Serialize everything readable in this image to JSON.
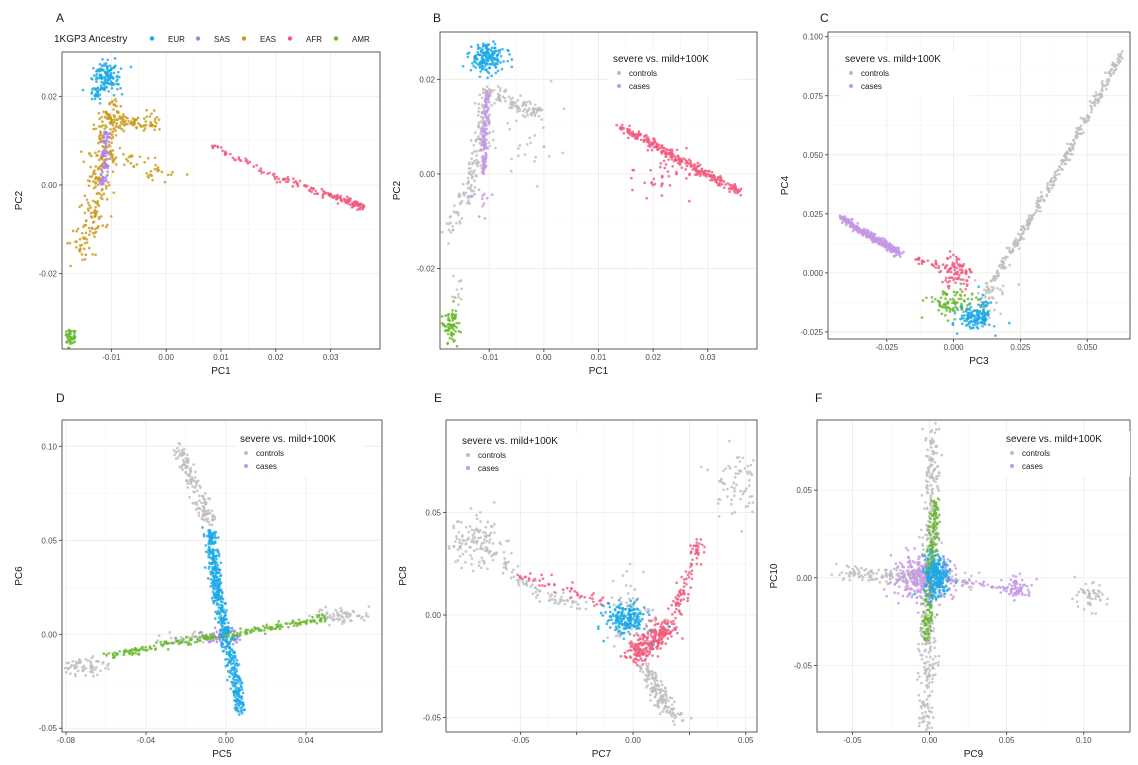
{
  "colors": {
    "EUR": "#1aa9e6",
    "SAS": "#b07de8",
    "EAS": "#cc9a1a",
    "AFR": "#f05a7e",
    "AMR": "#66b82a",
    "controls": "#bdbdbd",
    "cases": "#c597e6"
  },
  "legend_top": {
    "title": "1KGP3 Ancestry",
    "entries": [
      {
        "label": "EUR",
        "color_key": "EUR"
      },
      {
        "label": "SAS",
        "color_key": "SAS"
      },
      {
        "label": "EAS",
        "color_key": "EAS"
      },
      {
        "label": "AFR",
        "color_key": "AFR"
      },
      {
        "label": "AMR",
        "color_key": "AMR"
      }
    ]
  },
  "chart_data": [
    {
      "type": "scatter",
      "panel": "A",
      "xlabel": "PC1",
      "ylabel": "PC2",
      "xlim": [
        -0.019,
        0.039
      ],
      "ylim": [
        -0.037,
        0.03
      ],
      "xticks": [
        -0.01,
        0.0,
        0.01,
        0.02,
        0.03
      ],
      "xtick_labels": [
        "-0.01",
        "0.00",
        "0.01",
        "0.02",
        "0.03"
      ],
      "yticks": [
        -0.02,
        0.0,
        0.02
      ],
      "ytick_labels": [
        "-0.02",
        "0.00",
        "0.02"
      ],
      "clusters": [
        {
          "group": "EAS",
          "shape": "poly",
          "pts": [
            [
              -0.016,
              -0.015
            ],
            [
              -0.014,
              -0.01
            ],
            [
              -0.012,
              0.0
            ],
            [
              -0.011,
              0.012
            ],
            [
              -0.009,
              0.018
            ]
          ],
          "spread": 0.0025,
          "n": 260
        },
        {
          "group": "EAS",
          "shape": "poly",
          "pts": [
            [
              -0.011,
              0.015
            ],
            [
              -0.006,
              0.014
            ],
            [
              -0.002,
              0.014
            ]
          ],
          "spread": 0.0017,
          "n": 90
        },
        {
          "group": "EAS",
          "shape": "poly",
          "pts": [
            [
              -0.012,
              0.009
            ],
            [
              -0.004,
              0.004
            ],
            [
              0.002,
              0.002
            ]
          ],
          "spread": 0.0022,
          "n": 45
        },
        {
          "group": "SAS",
          "shape": "poly",
          "pts": [
            [
              -0.0115,
              0.0
            ],
            [
              -0.011,
              0.012
            ]
          ],
          "spread": 0.0007,
          "n": 70
        },
        {
          "group": "EUR",
          "shape": "blob",
          "cx": -0.011,
          "cy": 0.0245,
          "sx": 0.0013,
          "sy": 0.0017,
          "n": 130
        },
        {
          "group": "EUR",
          "shape": "blob",
          "cx": -0.0125,
          "cy": 0.0205,
          "sx": 0.0006,
          "sy": 0.0009,
          "n": 25
        },
        {
          "group": "AFR",
          "shape": "poly",
          "pts": [
            [
              0.008,
              0.009
            ],
            [
              0.02,
              0.002
            ],
            [
              0.036,
              -0.005
            ]
          ],
          "spread": 0.0008,
          "n": 110
        },
        {
          "group": "AFR",
          "shape": "poly",
          "pts": [
            [
              0.028,
              -0.0015
            ],
            [
              0.036,
              -0.005
            ]
          ],
          "spread": 0.0006,
          "n": 60
        },
        {
          "group": "AMR",
          "shape": "blob",
          "cx": -0.0175,
          "cy": -0.034,
          "sx": 0.0005,
          "sy": 0.0012,
          "n": 45
        }
      ]
    },
    {
      "type": "scatter",
      "panel": "B",
      "xlabel": "PC1",
      "ylabel": "PC2",
      "xlim": [
        -0.019,
        0.039
      ],
      "ylim": [
        -0.037,
        0.03
      ],
      "xticks": [
        -0.01,
        0.0,
        0.01,
        0.02,
        0.03
      ],
      "xtick_labels": [
        "-0.01",
        "0.00",
        "0.01",
        "0.02",
        "0.03"
      ],
      "yticks": [
        -0.02,
        0.0,
        0.02
      ],
      "ytick_labels": [
        "-0.02",
        "0.00",
        "0.02"
      ],
      "legend": {
        "title": "severe vs. mild+100K",
        "entries": [
          "controls",
          "cases"
        ]
      },
      "clusters": [
        {
          "group": "controls",
          "shape": "poly",
          "pts": [
            [
              -0.017,
              -0.012
            ],
            [
              -0.014,
              -0.004
            ],
            [
              -0.012,
              0.004
            ],
            [
              -0.011,
              0.016
            ]
          ],
          "spread": 0.0015,
          "n": 150
        },
        {
          "group": "controls",
          "shape": "poly",
          "pts": [
            [
              -0.011,
              0.018
            ],
            [
              -0.006,
              0.015
            ],
            [
              -0.001,
              0.013
            ]
          ],
          "spread": 0.0015,
          "n": 110
        },
        {
          "group": "controls",
          "shape": "blob",
          "cx": -0.004,
          "cy": 0.006,
          "sx": 0.004,
          "sy": 0.004,
          "n": 35
        },
        {
          "group": "controls",
          "shape": "blob",
          "cx": -0.016,
          "cy": -0.025,
          "sx": 0.0006,
          "sy": 0.002,
          "n": 12
        },
        {
          "group": "cases",
          "shape": "poly",
          "pts": [
            [
              -0.011,
              0.0
            ],
            [
              -0.0105,
              0.017
            ]
          ],
          "spread": 0.0007,
          "n": 130
        },
        {
          "group": "cases",
          "shape": "blob",
          "cx": -0.011,
          "cy": -0.005,
          "sx": 0.0012,
          "sy": 0.002,
          "n": 12
        },
        {
          "group": "EUR",
          "shape": "blob",
          "cx": -0.0105,
          "cy": 0.0245,
          "sx": 0.0016,
          "sy": 0.0015,
          "n": 170
        },
        {
          "group": "AFR",
          "shape": "poly",
          "pts": [
            [
              0.014,
              0.01
            ],
            [
              0.025,
              0.003
            ],
            [
              0.036,
              -0.004
            ]
          ],
          "spread": 0.001,
          "n": 280
        },
        {
          "group": "AFR",
          "shape": "blob",
          "cx": 0.022,
          "cy": 0.0,
          "sx": 0.004,
          "sy": 0.003,
          "n": 40
        },
        {
          "group": "AMR",
          "shape": "blob",
          "cx": -0.017,
          "cy": -0.032,
          "sx": 0.0006,
          "sy": 0.0022,
          "n": 70
        }
      ]
    },
    {
      "type": "scatter",
      "panel": "C",
      "xlabel": "PC3",
      "ylabel": "PC4",
      "xlim": [
        -0.047,
        0.066
      ],
      "ylim": [
        -0.028,
        0.102
      ],
      "xticks": [
        -0.025,
        0.0,
        0.025,
        0.05
      ],
      "xtick_labels": [
        "-0.025",
        "0.000",
        "0.025",
        "0.050"
      ],
      "yticks": [
        -0.025,
        0.0,
        0.025,
        0.05,
        0.075,
        0.1
      ],
      "ytick_labels": [
        "-0.025",
        "0.000",
        "0.025",
        "0.050",
        "0.075",
        "0.100"
      ],
      "legend": {
        "title": "severe vs. mild+100K",
        "entries": [
          "controls",
          "cases"
        ]
      },
      "clusters": [
        {
          "group": "controls",
          "shape": "poly",
          "pts": [
            [
              0.012,
              -0.008
            ],
            [
              0.03,
              0.025
            ],
            [
              0.045,
              0.055
            ],
            [
              0.063,
              0.093
            ]
          ],
          "spread": 0.0015,
          "n": 330
        },
        {
          "group": "controls",
          "shape": "blob",
          "cx": 0.013,
          "cy": -0.01,
          "sx": 0.003,
          "sy": 0.004,
          "n": 40
        },
        {
          "group": "cases",
          "shape": "poly",
          "pts": [
            [
              -0.042,
              0.023
            ],
            [
              -0.03,
              0.015
            ],
            [
              -0.02,
              0.008
            ]
          ],
          "spread": 0.0016,
          "n": 320
        },
        {
          "group": "AFR",
          "shape": "blob",
          "cx": 0.001,
          "cy": 0.0,
          "sx": 0.003,
          "sy": 0.003,
          "n": 90
        },
        {
          "group": "AFR",
          "shape": "poly",
          "pts": [
            [
              -0.015,
              0.006
            ],
            [
              -0.003,
              0.002
            ]
          ],
          "spread": 0.0015,
          "n": 25
        },
        {
          "group": "AMR",
          "shape": "blob",
          "cx": -0.001,
          "cy": -0.013,
          "sx": 0.0045,
          "sy": 0.003,
          "n": 90
        },
        {
          "group": "EUR",
          "shape": "blob",
          "cx": 0.008,
          "cy": -0.019,
          "sx": 0.003,
          "sy": 0.0025,
          "n": 120
        },
        {
          "group": "EUR",
          "shape": "blob",
          "cx": 0.011,
          "cy": -0.016,
          "sx": 0.0015,
          "sy": 0.005,
          "n": 30
        }
      ]
    },
    {
      "type": "scatter",
      "panel": "D",
      "xlabel": "PC5",
      "ylabel": "PC6",
      "xlim": [
        -0.082,
        0.078
      ],
      "ylim": [
        -0.052,
        0.114
      ],
      "xticks": [
        -0.08,
        -0.04,
        0.0,
        0.04
      ],
      "xtick_labels": [
        "-0.08",
        "-0.04",
        "0.00",
        "0.04"
      ],
      "yticks": [
        -0.05,
        0.0,
        0.05,
        0.1
      ],
      "ytick_labels": [
        "-0.05",
        "0.00",
        "0.05",
        "0.10"
      ],
      "legend": {
        "title": "severe vs. mild+100K",
        "entries": [
          "controls",
          "cases"
        ]
      },
      "clusters": [
        {
          "group": "controls",
          "shape": "poly",
          "pts": [
            [
              -0.024,
              0.1
            ],
            [
              -0.016,
              0.08
            ],
            [
              -0.009,
              0.06
            ]
          ],
          "spread": 0.0035,
          "n": 150
        },
        {
          "group": "controls",
          "shape": "blob",
          "cx": -0.072,
          "cy": -0.017,
          "sx": 0.006,
          "sy": 0.0025,
          "n": 70
        },
        {
          "group": "controls",
          "shape": "blob",
          "cx": 0.058,
          "cy": 0.01,
          "sx": 0.007,
          "sy": 0.002,
          "n": 70
        },
        {
          "group": "controls",
          "shape": "blob",
          "cx": -0.02,
          "cy": -0.002,
          "sx": 0.006,
          "sy": 0.002,
          "n": 30
        },
        {
          "group": "AMR",
          "shape": "poly",
          "pts": [
            [
              -0.06,
              -0.012
            ],
            [
              -0.03,
              -0.005
            ],
            [
              0.0,
              0.0
            ],
            [
              0.03,
              0.005
            ],
            [
              0.05,
              0.009
            ]
          ],
          "spread": 0.0018,
          "n": 230
        },
        {
          "group": "EUR",
          "shape": "poly",
          "pts": [
            [
              -0.008,
              0.055
            ],
            [
              -0.004,
              0.02
            ],
            [
              0.0,
              0.0
            ],
            [
              0.004,
              -0.02
            ],
            [
              0.007,
              -0.04
            ]
          ],
          "spread": 0.0028,
          "n": 520
        },
        {
          "group": "SAS",
          "shape": "blob",
          "cx": -0.002,
          "cy": -0.001,
          "sx": 0.0045,
          "sy": 0.0025,
          "n": 60
        }
      ]
    },
    {
      "type": "scatter",
      "panel": "E",
      "xlabel": "PC7",
      "ylabel": "PC8",
      "xlim": [
        -0.083,
        0.055
      ],
      "ylim": [
        -0.057,
        0.095
      ],
      "xticks": [
        -0.05,
        -0.025,
        0.0,
        0.025,
        0.05
      ],
      "xtick_labels": [
        "-0.05",
        "",
        "0.00",
        "",
        "0.05"
      ],
      "yticks": [
        -0.05,
        0.0,
        0.05
      ],
      "ytick_labels": [
        "-0.05",
        "0.00",
        "0.05"
      ],
      "legend": {
        "title": "severe vs. mild+100K",
        "entries": [
          "controls",
          "cases"
        ]
      },
      "clusters": [
        {
          "group": "controls",
          "shape": "blob",
          "cx": -0.07,
          "cy": 0.035,
          "sx": 0.007,
          "sy": 0.006,
          "n": 130
        },
        {
          "group": "controls",
          "shape": "poly",
          "pts": [
            [
              -0.062,
              0.028
            ],
            [
              -0.04,
              0.01
            ],
            [
              -0.02,
              0.002
            ]
          ],
          "spread": 0.0035,
          "n": 80
        },
        {
          "group": "controls",
          "shape": "poly",
          "pts": [
            [
              0.005,
              -0.025
            ],
            [
              0.012,
              -0.04
            ],
            [
              0.02,
              -0.05
            ]
          ],
          "spread": 0.004,
          "n": 150
        },
        {
          "group": "controls",
          "shape": "blob",
          "cx": 0.045,
          "cy": 0.065,
          "sx": 0.005,
          "sy": 0.008,
          "n": 70
        },
        {
          "group": "controls",
          "shape": "blob",
          "cx": 0.0,
          "cy": 0.0,
          "sx": 0.006,
          "sy": 0.012,
          "n": 60
        },
        {
          "group": "AFR",
          "shape": "poly",
          "pts": [
            [
              0.0,
              -0.02
            ],
            [
              0.008,
              -0.012
            ],
            [
              0.016,
              -0.005
            ]
          ],
          "spread": 0.005,
          "n": 260
        },
        {
          "group": "AFR",
          "shape": "poly",
          "pts": [
            [
              0.018,
              0.0
            ],
            [
              0.025,
              0.02
            ],
            [
              0.03,
              0.035
            ]
          ],
          "spread": 0.003,
          "n": 90
        },
        {
          "group": "AFR",
          "shape": "poly",
          "pts": [
            [
              -0.052,
              0.02
            ],
            [
              -0.03,
              0.012
            ],
            [
              -0.012,
              0.005
            ]
          ],
          "spread": 0.003,
          "n": 50
        },
        {
          "group": "EUR",
          "shape": "blob",
          "cx": -0.003,
          "cy": -0.002,
          "sx": 0.0045,
          "sy": 0.004,
          "n": 190
        }
      ]
    },
    {
      "type": "scatter",
      "panel": "F",
      "xlabel": "PC9",
      "ylabel": "PC10",
      "xlim": [
        -0.073,
        0.13
      ],
      "ylim": [
        -0.088,
        0.09
      ],
      "xticks": [
        -0.05,
        0.0,
        0.05,
        0.1
      ],
      "xtick_labels": [
        "-0.05",
        "0.00",
        "0.05",
        "0.10"
      ],
      "yticks": [
        -0.05,
        0.0,
        0.05
      ],
      "ytick_labels": [
        "-0.05",
        "0.00",
        "0.05"
      ],
      "legend": {
        "title": "severe vs. mild+100K",
        "entries": [
          "controls",
          "cases"
        ]
      },
      "clusters": [
        {
          "group": "controls",
          "shape": "poly",
          "pts": [
            [
              0.002,
              0.085
            ],
            [
              0.001,
              0.04
            ],
            [
              0.0,
              0.0
            ],
            [
              -0.001,
              -0.04
            ],
            [
              -0.002,
              -0.085
            ]
          ],
          "spread": 0.0045,
          "n": 420
        },
        {
          "group": "controls",
          "shape": "poly",
          "pts": [
            [
              -0.06,
              0.003
            ],
            [
              -0.03,
              0.001
            ],
            [
              0.0,
              0.0
            ],
            [
              0.03,
              -0.002
            ]
          ],
          "spread": 0.004,
          "n": 160
        },
        {
          "group": "controls",
          "shape": "blob",
          "cx": 0.103,
          "cy": -0.011,
          "sx": 0.006,
          "sy": 0.004,
          "n": 50
        },
        {
          "group": "AMR",
          "shape": "poly",
          "pts": [
            [
              0.004,
              0.045
            ],
            [
              0.002,
              0.02
            ],
            [
              0.0,
              0.0
            ],
            [
              -0.001,
              -0.02
            ],
            [
              -0.002,
              -0.035
            ]
          ],
          "spread": 0.0025,
          "n": 200
        },
        {
          "group": "cases",
          "shape": "blob",
          "cx": -0.004,
          "cy": 0.0,
          "sx": 0.01,
          "sy": 0.006,
          "n": 320
        },
        {
          "group": "cases",
          "shape": "blob",
          "cx": 0.057,
          "cy": -0.006,
          "sx": 0.005,
          "sy": 0.003,
          "n": 70
        },
        {
          "group": "cases",
          "shape": "poly",
          "pts": [
            [
              0.015,
              -0.002
            ],
            [
              0.045,
              -0.005
            ]
          ],
          "spread": 0.002,
          "n": 25
        },
        {
          "group": "EUR",
          "shape": "blob",
          "cx": 0.004,
          "cy": 0.001,
          "sx": 0.004,
          "sy": 0.006,
          "n": 230
        }
      ]
    }
  ]
}
